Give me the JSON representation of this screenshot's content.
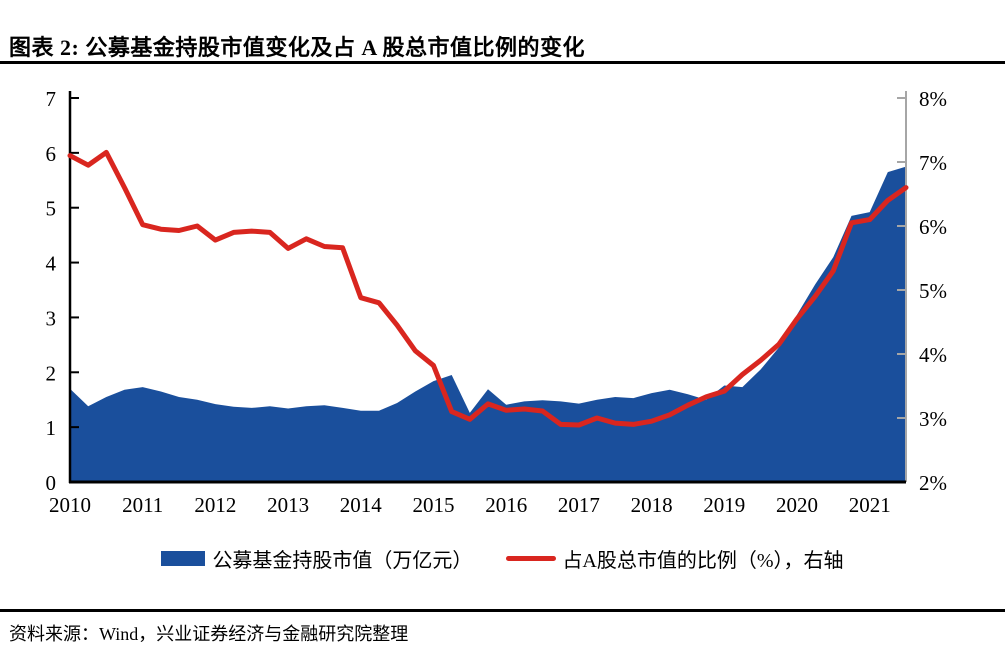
{
  "page": {
    "title": "图表 2: 公募基金持股市值变化及占 A 股总市值比例的变化",
    "source": "资料来源：Wind，兴业证券经济与金融研究院整理"
  },
  "colors": {
    "area_blue": "#1A4F9C",
    "line_red": "#D9261F",
    "right_axis_gray": "#A6A6A6",
    "axis_black": "#000000"
  },
  "chart_data": {
    "type": "combo",
    "frequency": "quarterly",
    "title": "公募基金持股市值变化及占A股总市值比例的变化",
    "x_quarters": [
      "2010Q1",
      "2010Q2",
      "2010Q3",
      "2010Q4",
      "2011Q1",
      "2011Q2",
      "2011Q3",
      "2011Q4",
      "2012Q1",
      "2012Q2",
      "2012Q3",
      "2012Q4",
      "2013Q1",
      "2013Q2",
      "2013Q3",
      "2013Q4",
      "2014Q1",
      "2014Q2",
      "2014Q3",
      "2014Q4",
      "2015Q1",
      "2015Q2",
      "2015Q3",
      "2015Q4",
      "2016Q1",
      "2016Q2",
      "2016Q3",
      "2016Q4",
      "2017Q1",
      "2017Q2",
      "2017Q3",
      "2017Q4",
      "2018Q1",
      "2018Q2",
      "2018Q3",
      "2018Q4",
      "2019Q1",
      "2019Q2",
      "2019Q3",
      "2019Q4",
      "2020Q1",
      "2020Q2",
      "2020Q3",
      "2020Q4",
      "2021Q1",
      "2021Q2",
      "2021Q3"
    ],
    "x_year_ticks": [
      "2010",
      "2011",
      "2012",
      "2013",
      "2014",
      "2015",
      "2016",
      "2017",
      "2018",
      "2019",
      "2020",
      "2021"
    ],
    "series": [
      {
        "name": "公募基金持股市值（万亿元）",
        "type": "area",
        "axis": "left",
        "color": "#1A4F9C",
        "values": [
          1.7,
          1.38,
          1.55,
          1.68,
          1.73,
          1.65,
          1.55,
          1.5,
          1.42,
          1.37,
          1.35,
          1.38,
          1.34,
          1.38,
          1.4,
          1.35,
          1.3,
          1.3,
          1.44,
          1.65,
          1.84,
          1.95,
          1.26,
          1.69,
          1.41,
          1.47,
          1.49,
          1.47,
          1.43,
          1.5,
          1.55,
          1.53,
          1.62,
          1.68,
          1.6,
          1.5,
          1.76,
          1.73,
          2.05,
          2.45,
          3.05,
          3.6,
          4.1,
          4.85,
          4.92,
          5.65,
          5.75
        ]
      },
      {
        "name": "占A股总市值的比例（%），右轴",
        "type": "line",
        "axis": "right",
        "color": "#D9261F",
        "values": [
          7.1,
          6.95,
          7.15,
          6.6,
          6.02,
          5.95,
          5.93,
          6.0,
          5.78,
          5.9,
          5.92,
          5.9,
          5.65,
          5.8,
          5.68,
          5.66,
          4.88,
          4.8,
          4.45,
          4.05,
          3.82,
          3.1,
          2.98,
          3.22,
          3.12,
          3.14,
          3.11,
          2.9,
          2.89,
          3.0,
          2.92,
          2.9,
          2.95,
          3.05,
          3.2,
          3.33,
          3.42,
          3.68,
          3.9,
          4.15,
          4.55,
          4.9,
          5.3,
          6.05,
          6.1,
          6.4,
          6.6
        ]
      }
    ],
    "left_axis": {
      "min": 0,
      "max": 7,
      "ticks": [
        "0",
        "1",
        "2",
        "3",
        "4",
        "5",
        "6",
        "7"
      ]
    },
    "right_axis": {
      "min": 2,
      "max": 8,
      "ticks": [
        "2%",
        "3%",
        "4%",
        "5%",
        "6%",
        "7%",
        "8%"
      ]
    },
    "legend": [
      {
        "label": "公募基金持股市值（万亿元）",
        "swatch": "area"
      },
      {
        "label": "占A股总市值的比例（%），右轴",
        "swatch": "line"
      }
    ],
    "legend_position": "bottom",
    "grid": false
  }
}
